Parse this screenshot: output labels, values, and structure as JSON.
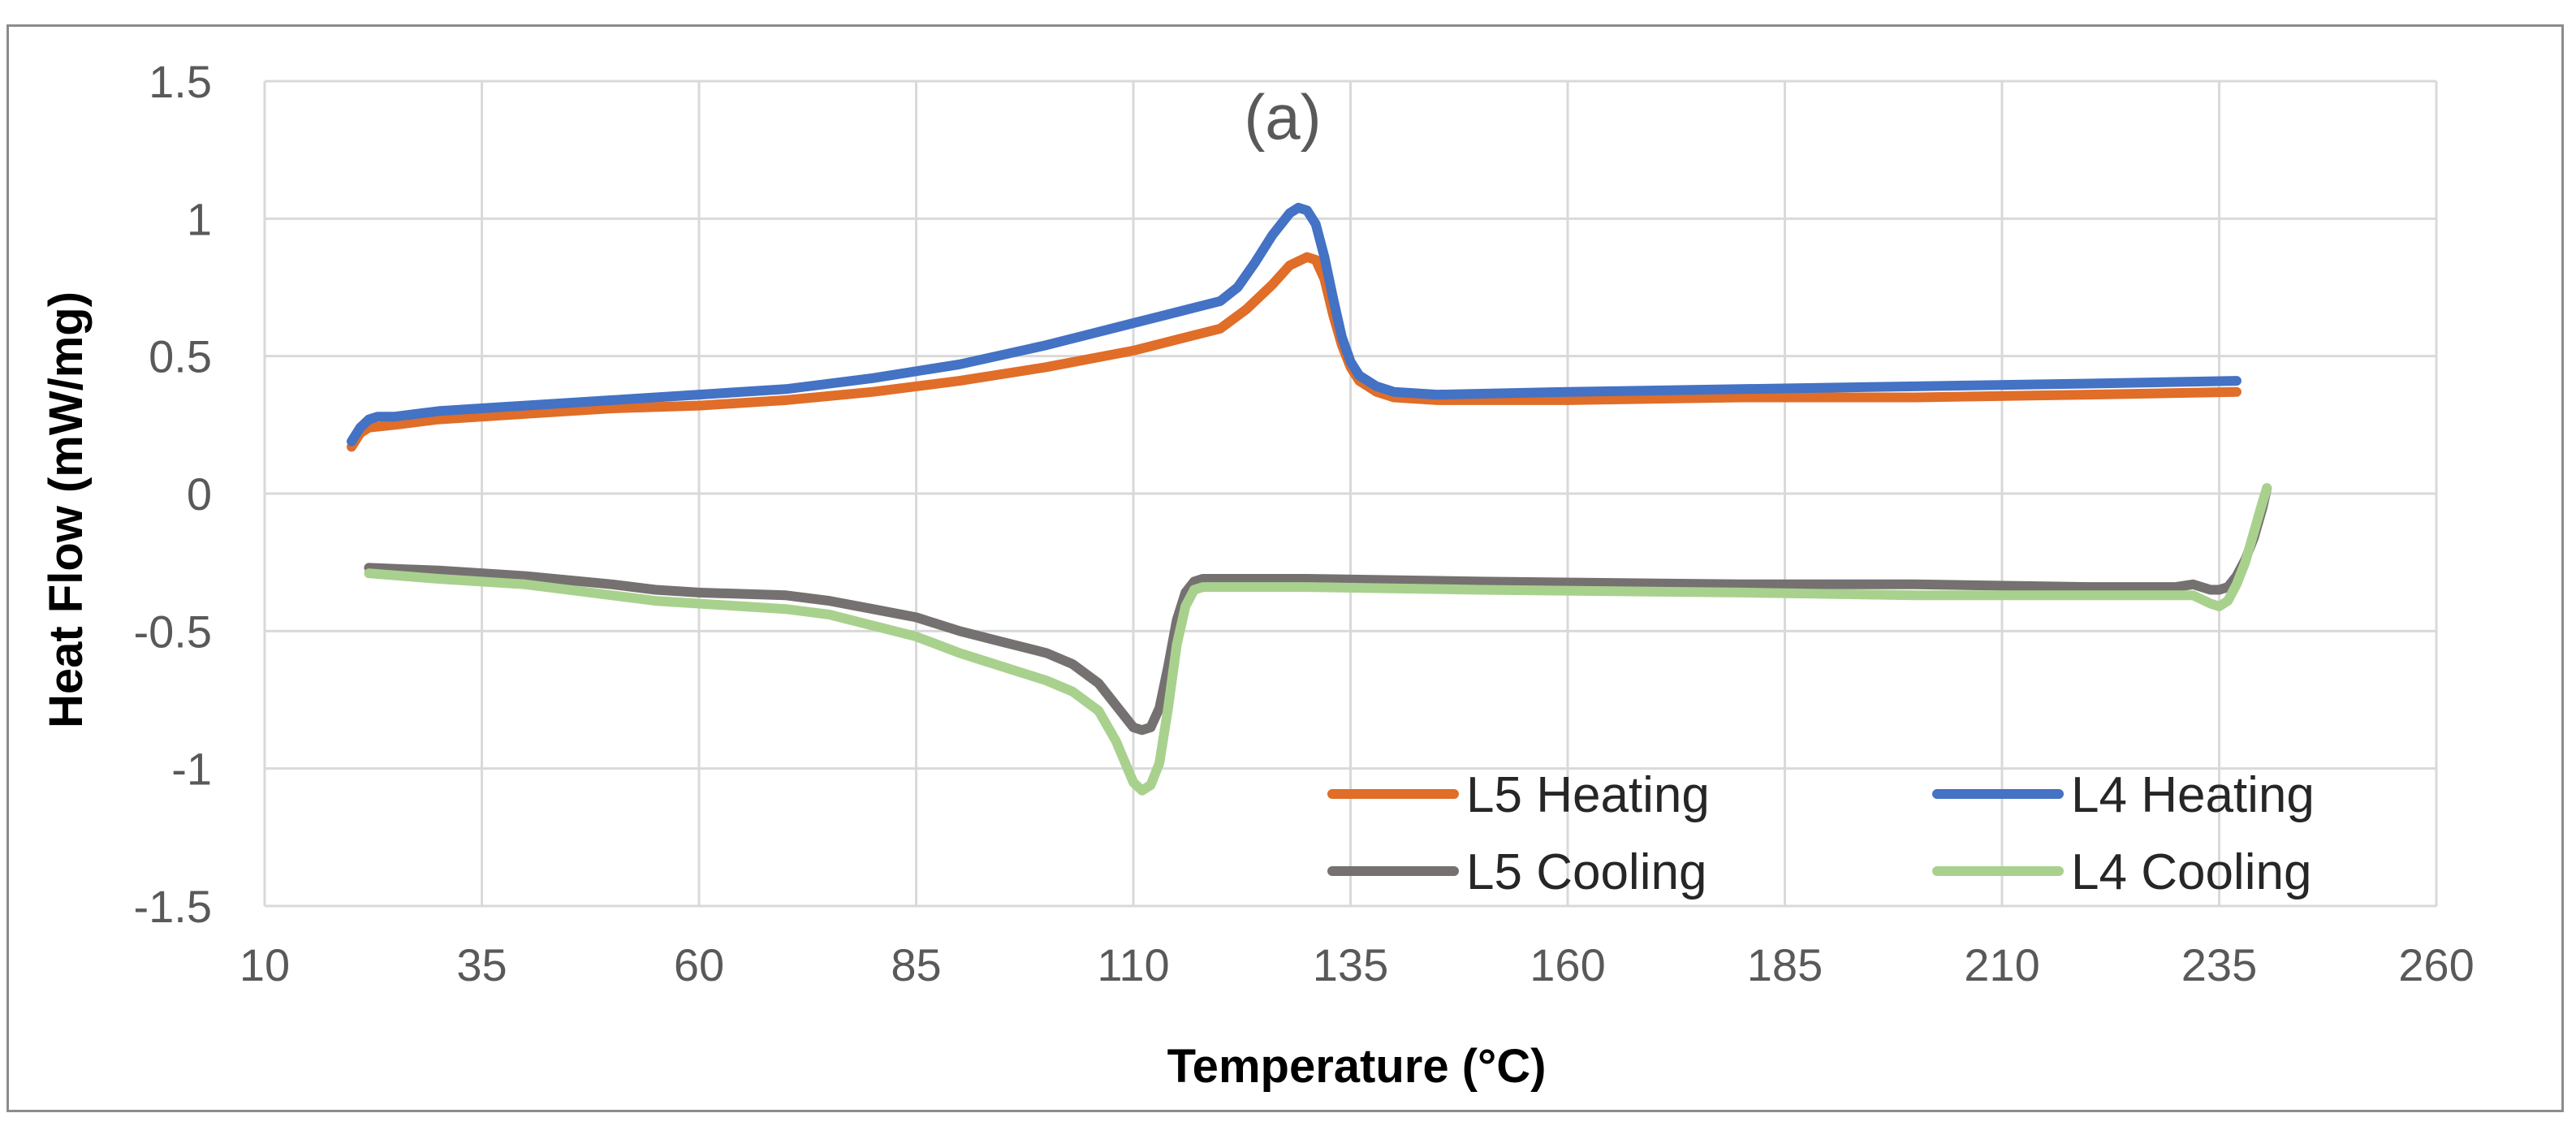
{
  "chart_data": {
    "type": "line",
    "title": "(a)",
    "xlabel": "Temperature  (°C)",
    "ylabel": "Heat Flow (mW/mg)",
    "xlim": [
      10,
      260
    ],
    "ylim": [
      -1.5,
      1.5
    ],
    "x_ticks": [
      10,
      35,
      60,
      85,
      110,
      135,
      160,
      185,
      210,
      235,
      260
    ],
    "y_ticks": [
      1.5,
      1,
      0.5,
      0,
      -0.5,
      -1,
      -1.5
    ],
    "x_tick_labels": [
      "10",
      "35",
      "60",
      "85",
      "110",
      "135",
      "160",
      "185",
      "210",
      "235",
      "260"
    ],
    "y_tick_labels": [
      "1.5",
      "1",
      "0.5",
      "0",
      "-0.5",
      "-1",
      "-1.5"
    ],
    "grid": true,
    "legend_position": "bottom-right",
    "series": [
      {
        "name": "L5 Heating",
        "color": "#E06D28",
        "points": [
          [
            20,
            0.17
          ],
          [
            21,
            0.22
          ],
          [
            22,
            0.24
          ],
          [
            25,
            0.25
          ],
          [
            30,
            0.27
          ],
          [
            40,
            0.29
          ],
          [
            50,
            0.31
          ],
          [
            60,
            0.32
          ],
          [
            70,
            0.34
          ],
          [
            80,
            0.37
          ],
          [
            90,
            0.41
          ],
          [
            100,
            0.46
          ],
          [
            110,
            0.52
          ],
          [
            115,
            0.56
          ],
          [
            120,
            0.6
          ],
          [
            123,
            0.67
          ],
          [
            126,
            0.76
          ],
          [
            128,
            0.83
          ],
          [
            130,
            0.86
          ],
          [
            131,
            0.85
          ],
          [
            132,
            0.78
          ],
          [
            133,
            0.65
          ],
          [
            134,
            0.54
          ],
          [
            135,
            0.46
          ],
          [
            136,
            0.41
          ],
          [
            138,
            0.37
          ],
          [
            140,
            0.35
          ],
          [
            145,
            0.34
          ],
          [
            160,
            0.34
          ],
          [
            180,
            0.35
          ],
          [
            200,
            0.35
          ],
          [
            220,
            0.36
          ],
          [
            237,
            0.37
          ]
        ]
      },
      {
        "name": "L4 Heating",
        "color": "#4472C4",
        "points": [
          [
            20,
            0.19
          ],
          [
            21,
            0.24
          ],
          [
            22,
            0.27
          ],
          [
            23,
            0.28
          ],
          [
            25,
            0.28
          ],
          [
            30,
            0.3
          ],
          [
            40,
            0.32
          ],
          [
            50,
            0.34
          ],
          [
            60,
            0.36
          ],
          [
            70,
            0.38
          ],
          [
            80,
            0.42
          ],
          [
            90,
            0.47
          ],
          [
            100,
            0.54
          ],
          [
            105,
            0.58
          ],
          [
            110,
            0.62
          ],
          [
            115,
            0.66
          ],
          [
            120,
            0.7
          ],
          [
            122,
            0.75
          ],
          [
            124,
            0.84
          ],
          [
            126,
            0.94
          ],
          [
            128,
            1.02
          ],
          [
            129,
            1.04
          ],
          [
            130,
            1.03
          ],
          [
            131,
            0.98
          ],
          [
            132,
            0.86
          ],
          [
            133,
            0.71
          ],
          [
            134,
            0.57
          ],
          [
            135,
            0.48
          ],
          [
            136,
            0.43
          ],
          [
            138,
            0.39
          ],
          [
            140,
            0.37
          ],
          [
            145,
            0.36
          ],
          [
            160,
            0.37
          ],
          [
            180,
            0.38
          ],
          [
            200,
            0.39
          ],
          [
            220,
            0.4
          ],
          [
            237,
            0.41
          ]
        ]
      },
      {
        "name": "L5 Cooling",
        "color": "#767171",
        "points": [
          [
            22,
            -0.27
          ],
          [
            30,
            -0.28
          ],
          [
            40,
            -0.3
          ],
          [
            50,
            -0.33
          ],
          [
            55,
            -0.35
          ],
          [
            60,
            -0.36
          ],
          [
            70,
            -0.37
          ],
          [
            75,
            -0.39
          ],
          [
            80,
            -0.42
          ],
          [
            85,
            -0.45
          ],
          [
            90,
            -0.5
          ],
          [
            95,
            -0.54
          ],
          [
            100,
            -0.58
          ],
          [
            103,
            -0.62
          ],
          [
            106,
            -0.69
          ],
          [
            108,
            -0.77
          ],
          [
            110,
            -0.85
          ],
          [
            111,
            -0.86
          ],
          [
            112,
            -0.85
          ],
          [
            113,
            -0.78
          ],
          [
            114,
            -0.63
          ],
          [
            115,
            -0.46
          ],
          [
            116,
            -0.36
          ],
          [
            117,
            -0.32
          ],
          [
            118,
            -0.31
          ],
          [
            130,
            -0.31
          ],
          [
            150,
            -0.32
          ],
          [
            180,
            -0.33
          ],
          [
            200,
            -0.33
          ],
          [
            220,
            -0.34
          ],
          [
            230,
            -0.34
          ],
          [
            232,
            -0.33
          ],
          [
            234,
            -0.35
          ],
          [
            235,
            -0.35
          ],
          [
            236,
            -0.34
          ],
          [
            237,
            -0.3
          ],
          [
            238,
            -0.24
          ],
          [
            239,
            -0.16
          ],
          [
            240,
            -0.05
          ],
          [
            240.5,
            0.02
          ]
        ]
      },
      {
        "name": "L4 Cooling",
        "color": "#A9D18E",
        "points": [
          [
            22,
            -0.29
          ],
          [
            30,
            -0.31
          ],
          [
            40,
            -0.33
          ],
          [
            50,
            -0.37
          ],
          [
            55,
            -0.39
          ],
          [
            60,
            -0.4
          ],
          [
            65,
            -0.41
          ],
          [
            70,
            -0.42
          ],
          [
            75,
            -0.44
          ],
          [
            80,
            -0.48
          ],
          [
            85,
            -0.52
          ],
          [
            90,
            -0.58
          ],
          [
            95,
            -0.63
          ],
          [
            100,
            -0.68
          ],
          [
            103,
            -0.72
          ],
          [
            106,
            -0.79
          ],
          [
            108,
            -0.9
          ],
          [
            110,
            -1.05
          ],
          [
            111,
            -1.08
          ],
          [
            112,
            -1.06
          ],
          [
            113,
            -0.98
          ],
          [
            114,
            -0.78
          ],
          [
            115,
            -0.55
          ],
          [
            116,
            -0.41
          ],
          [
            117,
            -0.35
          ],
          [
            118,
            -0.34
          ],
          [
            130,
            -0.34
          ],
          [
            150,
            -0.35
          ],
          [
            180,
            -0.36
          ],
          [
            200,
            -0.37
          ],
          [
            220,
            -0.37
          ],
          [
            230,
            -0.37
          ],
          [
            232,
            -0.37
          ],
          [
            234,
            -0.4
          ],
          [
            235,
            -0.41
          ],
          [
            236,
            -0.39
          ],
          [
            237,
            -0.33
          ],
          [
            238,
            -0.25
          ],
          [
            239,
            -0.14
          ],
          [
            240,
            -0.03
          ],
          [
            240.5,
            0.02
          ]
        ]
      }
    ]
  }
}
